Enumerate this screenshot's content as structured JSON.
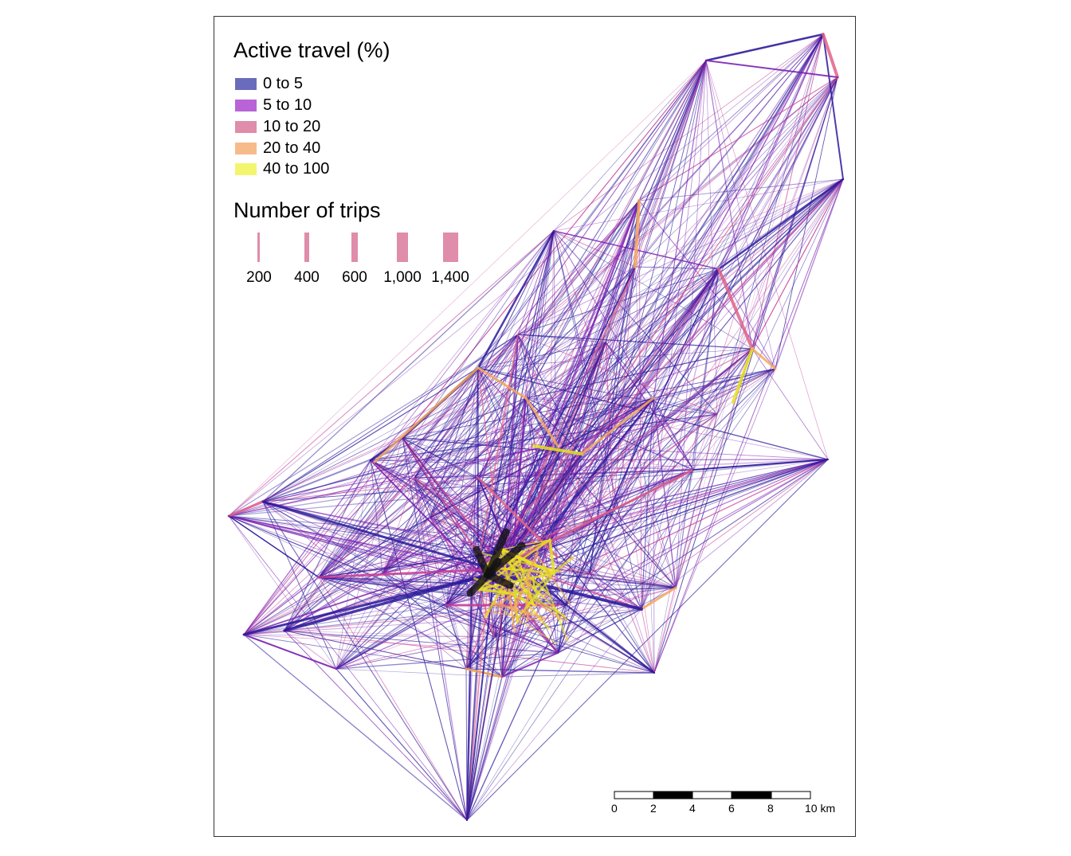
{
  "legend_color": {
    "title": "Active travel (%)",
    "items": [
      {
        "label": "0 to 5",
        "color": "#6b6bbd"
      },
      {
        "label": "5 to 10",
        "color": "#b864d6"
      },
      {
        "label": "10 to 20",
        "color": "#e08cab"
      },
      {
        "label": "20 to 40",
        "color": "#f7ba8a"
      },
      {
        "label": "40 to 100",
        "color": "#f4f56f"
      }
    ]
  },
  "legend_width": {
    "title": "Number of trips",
    "items": [
      {
        "label": "200",
        "trips": 200
      },
      {
        "label": "400",
        "trips": 400
      },
      {
        "label": "600",
        "trips": 600
      },
      {
        "label": "1,000",
        "trips": 1000
      },
      {
        "label": "1,400",
        "trips": 1400
      }
    ],
    "color": "#e08cab"
  },
  "scale_bar": {
    "ticks": [
      "0",
      "2",
      "4",
      "6",
      "8",
      "10 km"
    ]
  },
  "line_colors": {
    "dark": "#2a1a9a",
    "purple": "#7a1fb0",
    "magenta": "#c43a96",
    "pink": "#e0628a",
    "orange": "#f4a85a",
    "yellow": "#e8e020",
    "black": "#111111"
  }
}
